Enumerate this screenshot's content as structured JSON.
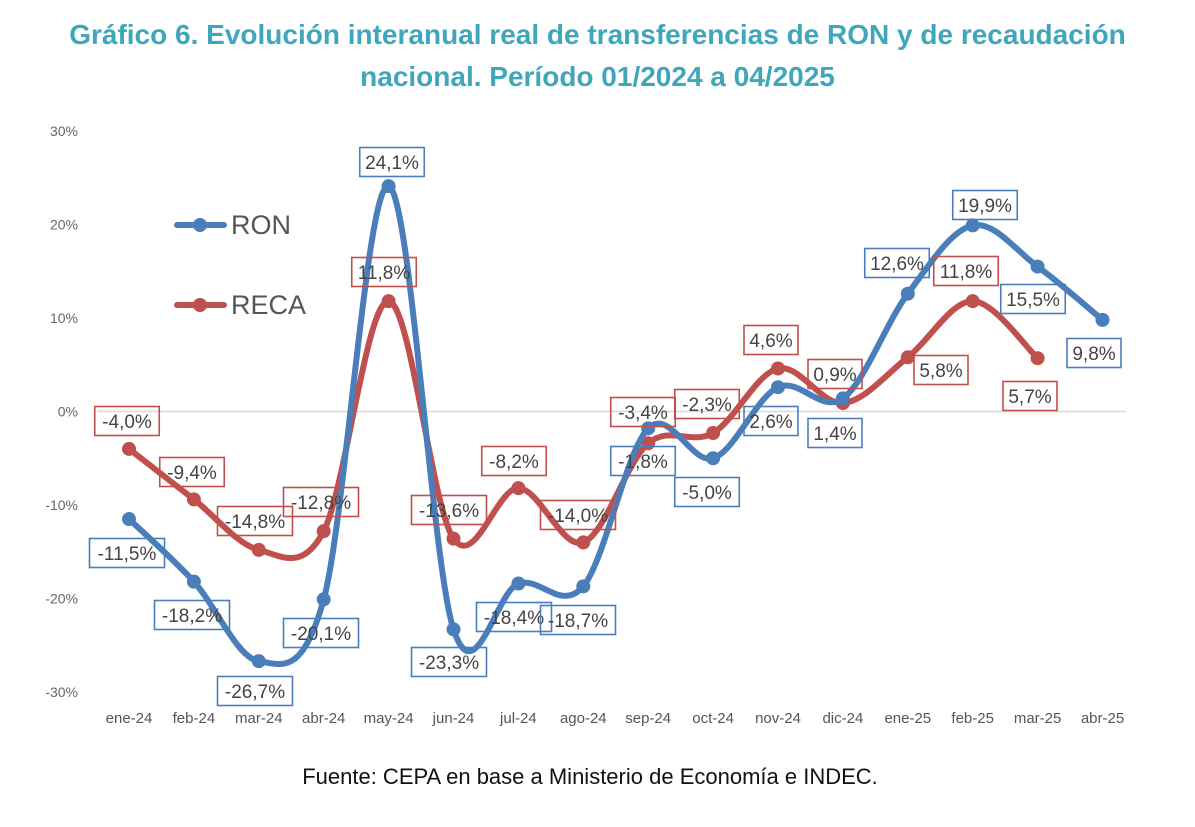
{
  "chart_data": {
    "type": "line",
    "title_line1": "Gráfico 6. Evolución interanual real de transferencias de RON y de recaudación",
    "title_line2": "nacional. Período 01/2024 a 04/2025",
    "xlabel": "",
    "ylabel": "",
    "ylim": [
      -30,
      30
    ],
    "yticks": [
      30,
      20,
      10,
      0,
      -10,
      -20,
      -30
    ],
    "ytick_labels": [
      "30%",
      "20%",
      "10%",
      "0%",
      "-10%",
      "-20%",
      "-30%"
    ],
    "categories": [
      "ene-24",
      "feb-24",
      "mar-24",
      "abr-24",
      "may-24",
      "jun-24",
      "jul-24",
      "ago-24",
      "sep-24",
      "oct-24",
      "nov-24",
      "dic-24",
      "ene-25",
      "feb-25",
      "mar-25",
      "abr-25"
    ],
    "grid": "zero line only",
    "legend_position": "left",
    "series": [
      {
        "name": "RON",
        "color": "#4a7ebb",
        "values": [
          -11.5,
          -18.2,
          -26.7,
          -20.1,
          24.1,
          -23.3,
          -18.4,
          -18.7,
          -1.8,
          -5.0,
          2.6,
          1.4,
          12.6,
          19.9,
          15.5,
          9.8
        ],
        "labels": [
          "-11,5%",
          "-18,2%",
          "-26,7%",
          "-20,1%",
          "24,1%",
          "-23,3%",
          "-18,4%",
          "-18,7%",
          "-1,8%",
          "-5,0%",
          "2,6%",
          "1,4%",
          "12,6%",
          "19,9%",
          "15,5%",
          "9,8%"
        ]
      },
      {
        "name": "RECA",
        "color": "#c0504d",
        "values": [
          -4.0,
          -9.4,
          -14.8,
          -12.8,
          11.8,
          -13.6,
          -8.2,
          -14.0,
          -3.4,
          -2.3,
          4.6,
          0.9,
          5.8,
          11.8,
          5.7,
          null
        ],
        "labels": [
          "-4,0%",
          "-9,4%",
          "-14,8%",
          "-12,8%",
          "11,8%",
          "-13,6%",
          "-8,2%",
          "-14,0%",
          "-3,4%",
          "-2,3%",
          "4,6%",
          "0,9%",
          "5,8%",
          "11,8%",
          "5,7%",
          null
        ]
      }
    ],
    "source": "Fuente: CEPA en base a Ministerio de Economía e INDEC."
  }
}
